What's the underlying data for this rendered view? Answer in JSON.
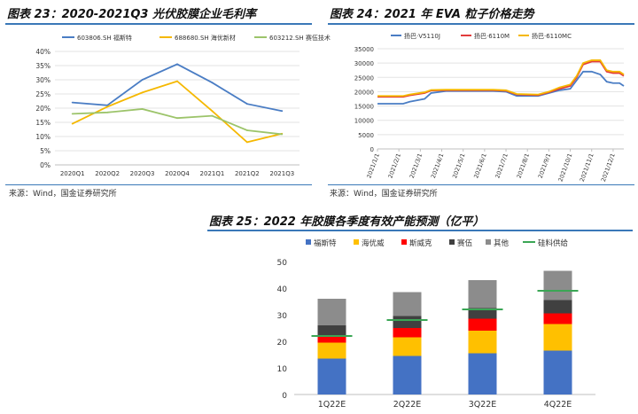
{
  "figures": {
    "fig23": {
      "title": "图表 23：2020-2021Q3 光伏胶膜企业毛利率",
      "source": "来源：Wind，国金证券研究所"
    },
    "fig24": {
      "title": "图表 24：2021 年 EVA 粒子价格走势",
      "source": "来源：Wind，国金证券研究所"
    },
    "fig25": {
      "title": "图表 25：2022 年胶膜各季度有效产能预测（亿平）"
    }
  },
  "colors": {
    "rule": "#3a78b8"
  },
  "chart_data": [
    {
      "id": "fig23",
      "type": "line",
      "categories": [
        "2020Q1",
        "2020Q2",
        "2020Q3",
        "2020Q4",
        "2021Q1",
        "2021Q2",
        "2021Q3"
      ],
      "ylim": [
        0,
        40
      ],
      "yticks": [
        "0%",
        "5%",
        "10%",
        "15%",
        "20%",
        "25%",
        "30%",
        "35%",
        "40%"
      ],
      "grid": true,
      "legend": "top",
      "series": [
        {
          "name": "603806.SH 福斯特",
          "color": "#4a7dc4",
          "values": [
            22,
            21,
            30,
            35.5,
            29,
            21.5,
            19
          ]
        },
        {
          "name": "688680.SH 海优新材",
          "color": "#f5b800",
          "values": [
            14.5,
            20.5,
            25.5,
            29.5,
            19,
            8,
            11
          ]
        },
        {
          "name": "603212.SH 赛伍技术",
          "color": "#9cc46a",
          "values": [
            18,
            18.5,
            19.7,
            16.5,
            17.3,
            12.2,
            10.8
          ]
        }
      ]
    },
    {
      "id": "fig24",
      "type": "line",
      "categories": [
        "2021/1/1",
        "2021/2/1",
        "2021/3/1",
        "2021/4/1",
        "2021/5/1",
        "2021/6/1",
        "2021/7/1",
        "2021/8/1",
        "2021/9/1",
        "2021/10/1",
        "2021/11/1",
        "2021/12/1"
      ],
      "ylim": [
        0,
        35000
      ],
      "yticks": [
        "0",
        "5000",
        "10000",
        "15000",
        "20000",
        "25000",
        "30000",
        "35000"
      ],
      "grid": true,
      "legend": "top",
      "series": [
        {
          "name": "扬巴·V5110J",
          "color": "#4a7dc4",
          "x": [
            0,
            0.6,
            1.2,
            1.5,
            2.2,
            2.5,
            3.2,
            4,
            5,
            5.4,
            6,
            6.5,
            7.5,
            8,
            8.5,
            9,
            9.3,
            9.6,
            10,
            10.4,
            10.7,
            11,
            11.3,
            11.5
          ],
          "values": [
            15800,
            15800,
            15800,
            16500,
            17500,
            19500,
            20200,
            20200,
            20200,
            20200,
            20000,
            18500,
            18500,
            19500,
            20500,
            21000,
            24000,
            27000,
            27000,
            26000,
            23500,
            23000,
            23000,
            22000
          ]
        },
        {
          "name": "扬巴·6110M",
          "color": "#e23b3b",
          "x": [
            0,
            0.6,
            1.2,
            1.5,
            2.2,
            2.5,
            3.2,
            4,
            5,
            5.4,
            6,
            6.5,
            7.5,
            8,
            8.5,
            9,
            9.3,
            9.6,
            10,
            10.4,
            10.7,
            11,
            11.3,
            11.5
          ],
          "values": [
            18200,
            18200,
            18200,
            18700,
            19500,
            20400,
            20500,
            20500,
            20500,
            20500,
            20300,
            19000,
            18800,
            19800,
            21000,
            22000,
            25000,
            29500,
            30500,
            30500,
            27000,
            26500,
            26500,
            25500
          ]
        },
        {
          "name": "扬巴·6110MC",
          "color": "#f5b800",
          "x": [
            0,
            0.6,
            1.2,
            1.5,
            2.2,
            2.5,
            3.2,
            4,
            5,
            5.4,
            6,
            6.5,
            7.5,
            8,
            8.5,
            9,
            9.3,
            9.6,
            10,
            10.4,
            10.7,
            11,
            11.3,
            11.5
          ],
          "values": [
            18500,
            18500,
            18500,
            19000,
            19800,
            20600,
            20700,
            20700,
            20700,
            20700,
            20500,
            19200,
            19000,
            20000,
            21500,
            22500,
            25500,
            30000,
            31000,
            31000,
            27500,
            27000,
            27000,
            26000
          ]
        }
      ]
    },
    {
      "id": "fig25",
      "type": "bar",
      "stacked": true,
      "categories": [
        "1Q22E",
        "2Q22E",
        "3Q22E",
        "4Q22E"
      ],
      "ylim": [
        0,
        50
      ],
      "yticks": [
        "0",
        "10",
        "20",
        "30",
        "40",
        "50"
      ],
      "legend": "top",
      "series": [
        {
          "name": "福斯特",
          "color": "#4472c4",
          "values": [
            13.5,
            14.5,
            15.5,
            16.5
          ]
        },
        {
          "name": "海优威",
          "color": "#ffc000",
          "values": [
            6,
            7,
            8.5,
            10
          ]
        },
        {
          "name": "斯威克",
          "color": "#ff0000",
          "values": [
            2.5,
            3.5,
            4.5,
            4
          ]
        },
        {
          "name": "赛伍",
          "color": "#404040",
          "values": [
            4,
            4.5,
            4,
            5
          ]
        },
        {
          "name": "其他",
          "color": "#8c8c8c",
          "values": [
            10,
            9,
            10.5,
            11
          ]
        }
      ],
      "supply": {
        "name": "硅料供给",
        "color": "#3aa655",
        "values": [
          22,
          28,
          32,
          39
        ]
      }
    }
  ]
}
